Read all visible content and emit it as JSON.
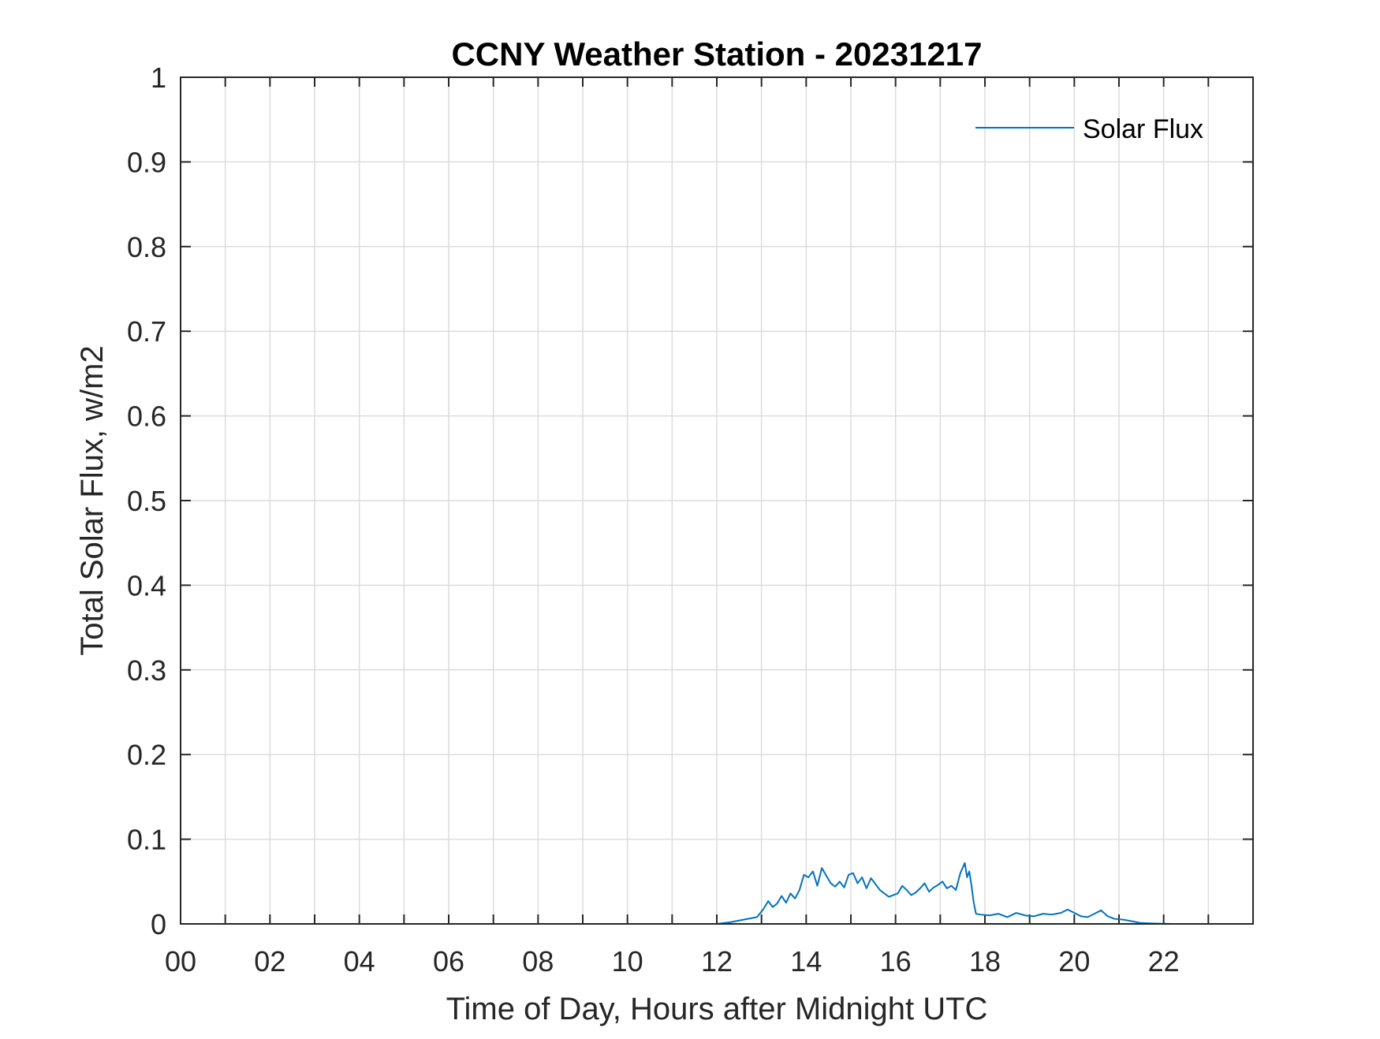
{
  "chart_data": {
    "type": "line",
    "title": "CCNY Weather Station - 20231217",
    "xlabel": "Time of Day, Hours after Midnight UTC",
    "ylabel": "Total Solar Flux, w/m2",
    "xlim": [
      0,
      24
    ],
    "ylim": [
      0,
      1
    ],
    "grid": true,
    "legend_position": "top-right",
    "x_ticks": [
      0,
      2,
      4,
      6,
      8,
      10,
      12,
      14,
      16,
      18,
      20,
      22
    ],
    "x_tick_labels": [
      "00",
      "02",
      "04",
      "06",
      "08",
      "10",
      "12",
      "14",
      "16",
      "18",
      "20",
      "22"
    ],
    "y_ticks": [
      0,
      0.1,
      0.2,
      0.3,
      0.4,
      0.5,
      0.6,
      0.7,
      0.8,
      0.9,
      1
    ],
    "y_tick_labels": [
      "0",
      "0.1",
      "0.2",
      "0.3",
      "0.4",
      "0.5",
      "0.6",
      "0.7",
      "0.8",
      "0.9",
      "1"
    ],
    "series": [
      {
        "name": "Solar Flux",
        "color": "#0072BD",
        "x": [
          0,
          12.0,
          12.3,
          12.6,
          12.9,
          13.05,
          13.15,
          13.25,
          13.35,
          13.45,
          13.55,
          13.65,
          13.75,
          13.85,
          13.95,
          14.05,
          14.15,
          14.25,
          14.35,
          14.45,
          14.55,
          14.65,
          14.75,
          14.85,
          14.95,
          15.05,
          15.15,
          15.25,
          15.35,
          15.45,
          15.55,
          15.65,
          15.75,
          15.85,
          15.95,
          16.05,
          16.15,
          16.25,
          16.35,
          16.45,
          16.55,
          16.65,
          16.75,
          16.85,
          16.95,
          17.05,
          17.15,
          17.25,
          17.35,
          17.45,
          17.55,
          17.6,
          17.65,
          17.7,
          17.75,
          17.8,
          17.9,
          18.1,
          18.3,
          18.5,
          18.7,
          18.9,
          19.1,
          19.3,
          19.5,
          19.7,
          19.85,
          20.0,
          20.15,
          20.3,
          20.45,
          20.6,
          20.75,
          20.9,
          21.1,
          21.3,
          21.5,
          21.8,
          22.2,
          24
        ],
        "y": [
          0,
          0,
          0.002,
          0.005,
          0.008,
          0.018,
          0.027,
          0.02,
          0.024,
          0.033,
          0.025,
          0.036,
          0.03,
          0.04,
          0.058,
          0.055,
          0.062,
          0.045,
          0.066,
          0.057,
          0.048,
          0.044,
          0.05,
          0.043,
          0.058,
          0.06,
          0.048,
          0.055,
          0.042,
          0.054,
          0.047,
          0.04,
          0.036,
          0.032,
          0.034,
          0.036,
          0.045,
          0.04,
          0.034,
          0.037,
          0.042,
          0.048,
          0.038,
          0.043,
          0.046,
          0.05,
          0.042,
          0.045,
          0.04,
          0.06,
          0.072,
          0.055,
          0.062,
          0.045,
          0.025,
          0.012,
          0.011,
          0.01,
          0.012,
          0.008,
          0.013,
          0.01,
          0.009,
          0.012,
          0.011,
          0.013,
          0.017,
          0.013,
          0.009,
          0.008,
          0.012,
          0.016,
          0.009,
          0.006,
          0.005,
          0.003,
          0.001,
          0.0005,
          0,
          0
        ]
      }
    ]
  }
}
